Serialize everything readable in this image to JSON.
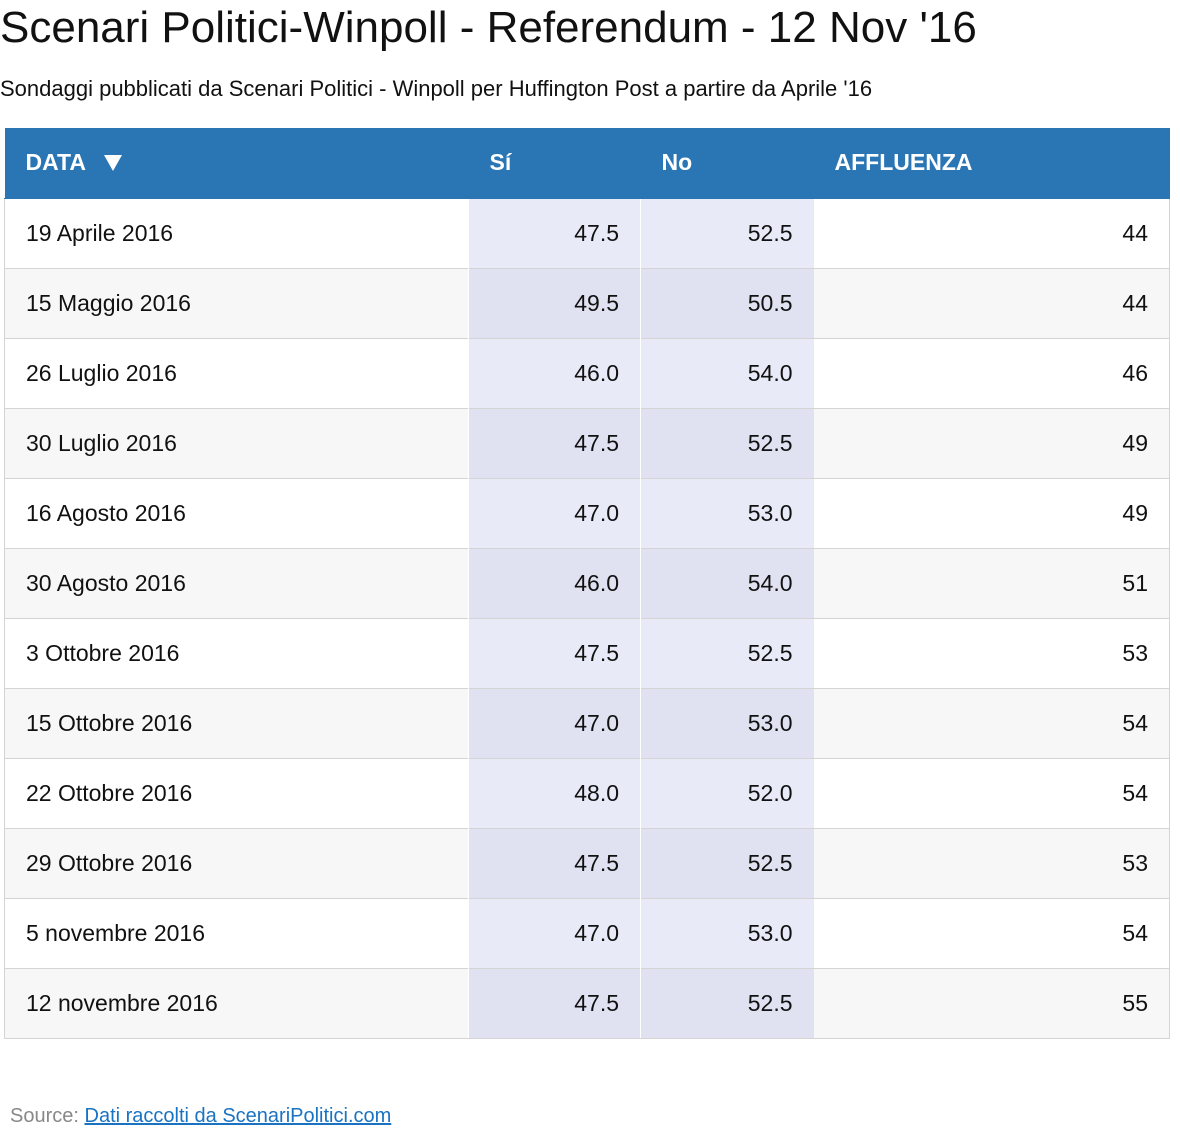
{
  "title": "Scenari Politici-Winpoll - Referendum - 12 Nov '16",
  "subtitle": "Sondaggi pubblicati da Scenari Politici - Winpoll per Huffington Post a partire da Aprile '16",
  "colors": {
    "header_bg": "#2a76b4",
    "header_text": "#ffffff",
    "highlight_column_bg": "#e8eaf7",
    "link": "#1a73c2",
    "source_label": "#888888"
  },
  "table": {
    "sort_icon": "triangle-down-icon",
    "columns": [
      "DATA",
      "Sí",
      "No",
      "AFFLUENZA"
    ],
    "rows": [
      {
        "data": "19 Aprile 2016",
        "si": "47.5",
        "no": "52.5",
        "affluenza": "44"
      },
      {
        "data": "15 Maggio 2016",
        "si": "49.5",
        "no": "50.5",
        "affluenza": "44"
      },
      {
        "data": "26 Luglio 2016",
        "si": "46.0",
        "no": "54.0",
        "affluenza": "46"
      },
      {
        "data": "30 Luglio 2016",
        "si": "47.5",
        "no": "52.5",
        "affluenza": "49"
      },
      {
        "data": "16 Agosto 2016",
        "si": "47.0",
        "no": "53.0",
        "affluenza": "49"
      },
      {
        "data": "30 Agosto 2016",
        "si": "46.0",
        "no": "54.0",
        "affluenza": "51"
      },
      {
        "data": "3 Ottobre 2016",
        "si": "47.5",
        "no": "52.5",
        "affluenza": "53"
      },
      {
        "data": "15 Ottobre 2016",
        "si": "47.0",
        "no": "53.0",
        "affluenza": "54"
      },
      {
        "data": "22 Ottobre 2016",
        "si": "48.0",
        "no": "52.0",
        "affluenza": "54"
      },
      {
        "data": "29 Ottobre 2016",
        "si": "47.5",
        "no": "52.5",
        "affluenza": "53"
      },
      {
        "data": "5 novembre 2016",
        "si": "47.0",
        "no": "53.0",
        "affluenza": "54"
      },
      {
        "data": "12 novembre 2016",
        "si": "47.5",
        "no": "52.5",
        "affluenza": "55"
      }
    ]
  },
  "source": {
    "label": "Source:",
    "link_text": "Dati raccolti da ScenariPolitici.com"
  },
  "chart_data": {
    "type": "table",
    "title": "Scenari Politici-Winpoll - Referendum - 12 Nov '16",
    "subtitle": "Sondaggi pubblicati da Scenari Politici - Winpoll per Huffington Post a partire da Aprile '16",
    "categories": [
      "19 Aprile 2016",
      "15 Maggio 2016",
      "26 Luglio 2016",
      "30 Luglio 2016",
      "16 Agosto 2016",
      "30 Agosto 2016",
      "3 Ottobre 2016",
      "15 Ottobre 2016",
      "22 Ottobre 2016",
      "29 Ottobre 2016",
      "5 novembre 2016",
      "12 novembre 2016"
    ],
    "series": [
      {
        "name": "Sí",
        "values": [
          47.5,
          49.5,
          46.0,
          47.5,
          47.0,
          46.0,
          47.5,
          47.0,
          48.0,
          47.5,
          47.0,
          47.5
        ]
      },
      {
        "name": "No",
        "values": [
          52.5,
          50.5,
          54.0,
          52.5,
          53.0,
          54.0,
          52.5,
          53.0,
          52.0,
          52.5,
          53.0,
          52.5
        ]
      },
      {
        "name": "AFFLUENZA",
        "values": [
          44,
          44,
          46,
          49,
          49,
          51,
          53,
          54,
          54,
          53,
          54,
          55
        ]
      }
    ]
  }
}
